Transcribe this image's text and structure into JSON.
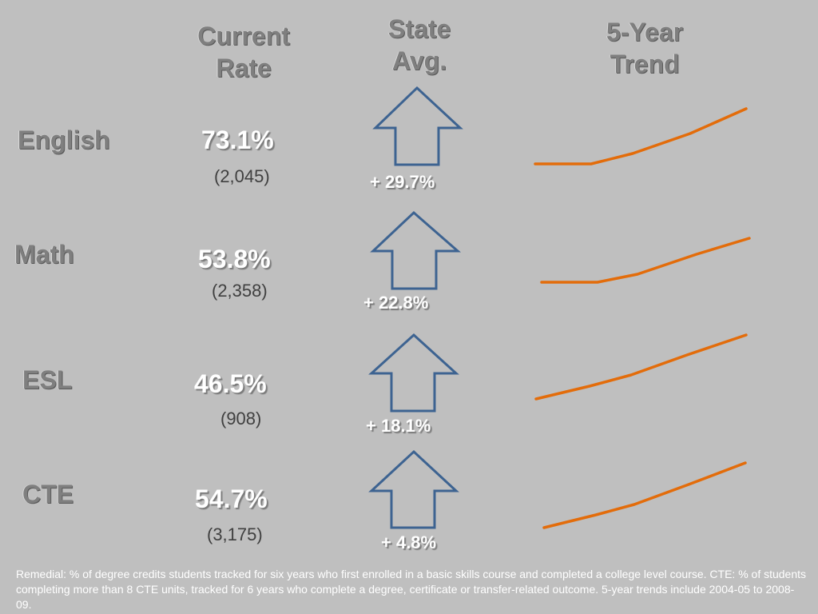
{
  "headers": {
    "current_rate": [
      "Current",
      "Rate"
    ],
    "state_avg": [
      "State",
      "Avg."
    ],
    "five_year_trend": [
      "5-Year",
      "Trend"
    ]
  },
  "rows": [
    {
      "subject": "English",
      "rate": "73.1%",
      "count": "(2,045)",
      "delta": "+ 29.7%"
    },
    {
      "subject": "Math",
      "rate": "53.8%",
      "count": "(2,358)",
      "delta": "+ 22.8%"
    },
    {
      "subject": "ESL",
      "rate": "46.5%",
      "count": "(908)",
      "delta": "+ 18.1%"
    },
    {
      "subject": "CTE",
      "rate": "54.7%",
      "count": "(3,175)",
      "delta": "+ 4.8%"
    }
  ],
  "footnote": "Remedial: % of degree credits students tracked for six years who first enrolled in a basic skills course and completed a college level course. CTE: % of students completing more than 8 CTE units, tracked for 6 years who complete a degree, certificate or transfer-related outcome. 5-year trends include 2004-05 to 2008-09.",
  "colors": {
    "background": "#bfbfbf",
    "arrow_stroke": "#3d6391",
    "trend_line": "#e36c0a",
    "header_text": "#7f7f7f"
  },
  "icons": {
    "state_avg_indicator": "up-arrow-icon"
  }
}
